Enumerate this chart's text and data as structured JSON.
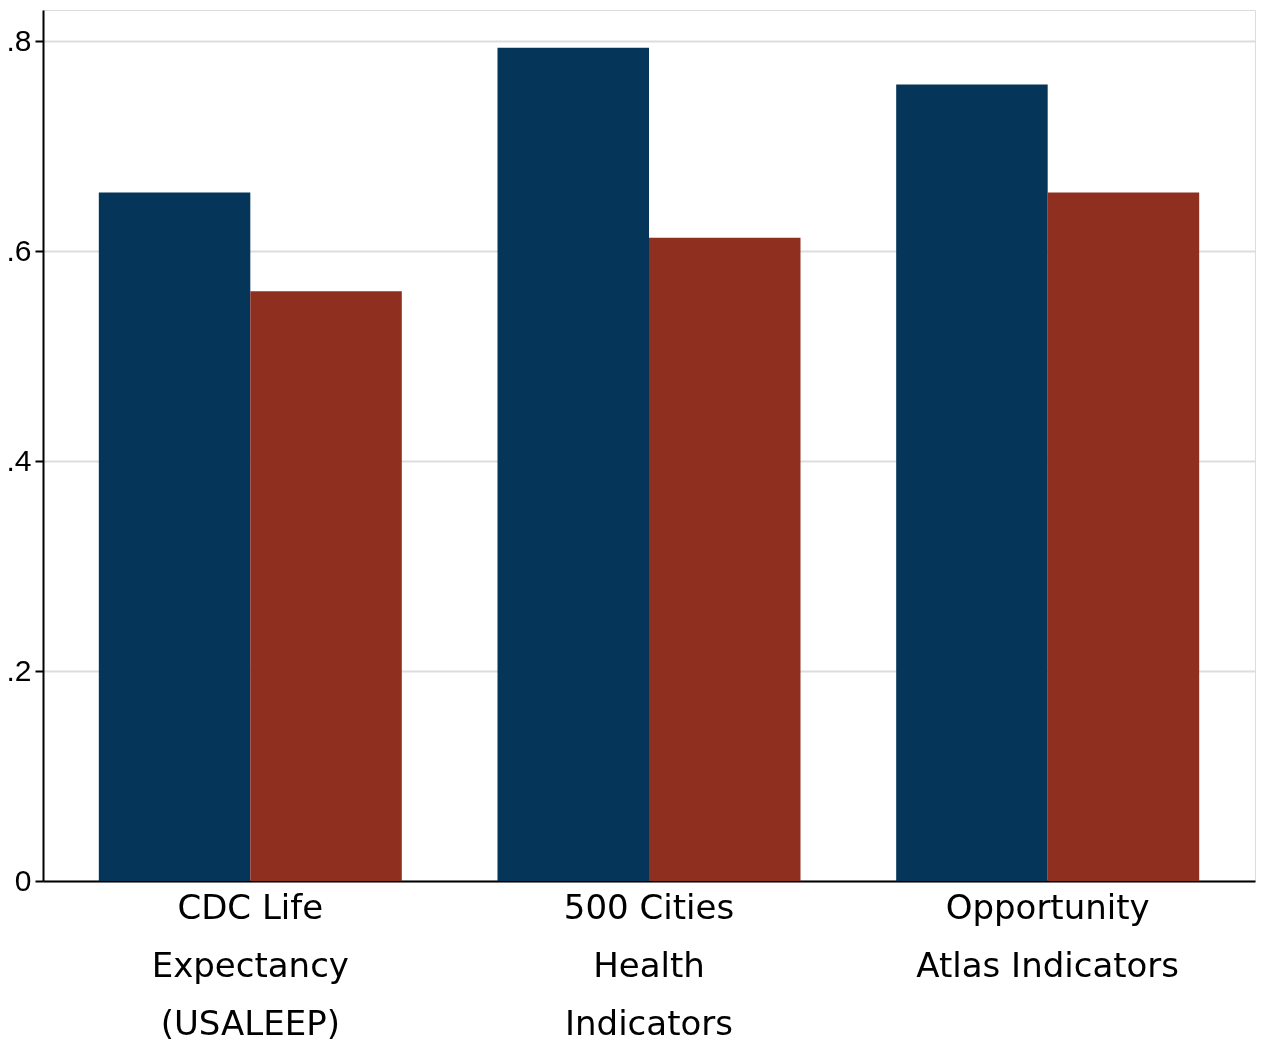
{
  "chart_data": {
    "type": "bar",
    "categories": [
      "CDC Life\nExpectancy\n(USALEEP)",
      "500 Cities\nHealth\nIndicators",
      "Opportunity\nAtlas Indicators"
    ],
    "series": [
      {
        "color": "#053659",
        "values": [
          0.656,
          0.794,
          0.759
        ]
      },
      {
        "color": "#8f2f20",
        "values": [
          0.562,
          0.613,
          0.656
        ]
      }
    ],
    "ylim": [
      0,
      0.83
    ],
    "yticks": [
      {
        "value": 0,
        "label": "0"
      },
      {
        "value": 0.2,
        "label": ".2"
      },
      {
        "value": 0.4,
        "label": ".4"
      },
      {
        "value": 0.6,
        "label": ".6"
      },
      {
        "value": 0.8,
        "label": ".8"
      }
    ],
    "grid": "y",
    "legend": false
  }
}
